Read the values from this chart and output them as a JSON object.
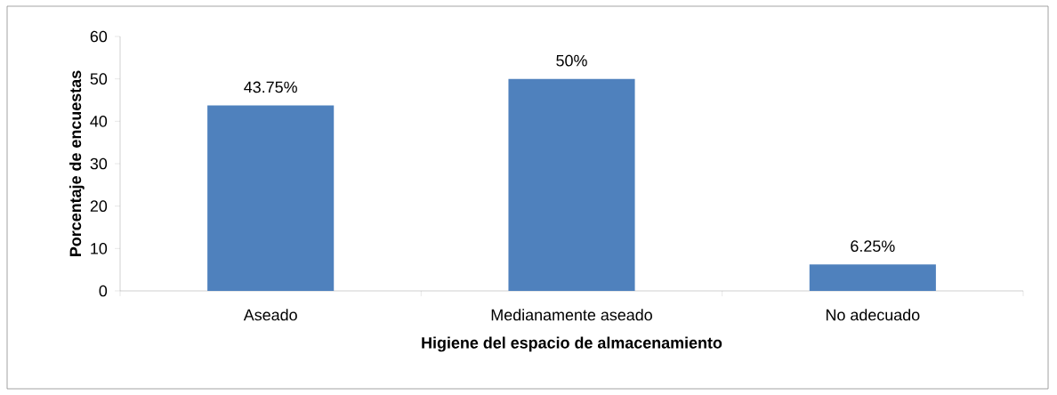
{
  "chart_data": {
    "type": "bar",
    "xlabel": "Higiene del espacio de almacenamiento",
    "ylabel": "Porcentaje de encuestas",
    "categories": [
      "Aseado",
      "Medianamente aseado",
      "No adecuado"
    ],
    "values": [
      43.75,
      50,
      6.25
    ],
    "color": "#4f81bd",
    "value_labels": [
      "43.75%",
      "50%",
      "6.25%"
    ],
    "ylim": [
      0,
      60
    ],
    "yticks": [
      0,
      10,
      20,
      30,
      40,
      50,
      60
    ],
    "grid": false
  }
}
